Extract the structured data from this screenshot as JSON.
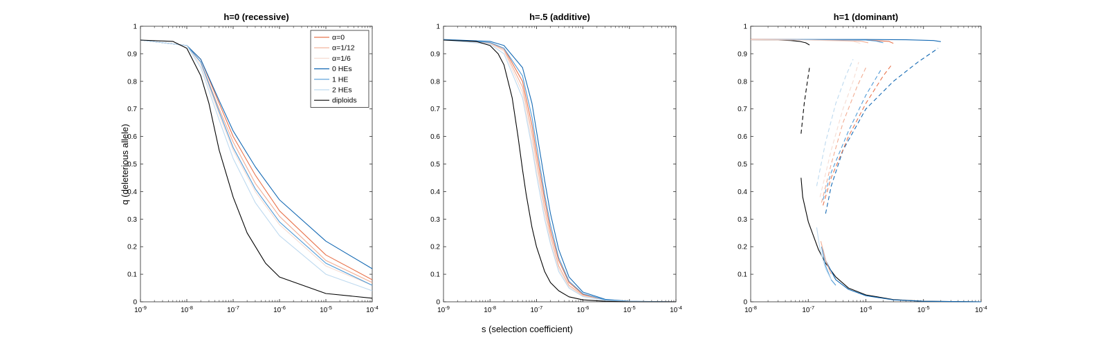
{
  "figure": {
    "xlabel": "s (selection coefficient)",
    "ylabel": "q (deleterious allele)",
    "colors": {
      "alpha_0": "#e8734c",
      "alpha_1_12": "#f2ac92",
      "alpha_1_6": "#f6dcd2",
      "he_0": "#1268b3",
      "he_1": "#4f9ad6",
      "he_2": "#bdd9ef",
      "diploids": "#000000"
    }
  },
  "chart_data": [
    {
      "type": "line",
      "title": "h=0 (recessive)",
      "xscale": "log",
      "xlim": [
        1e-09,
        0.0001
      ],
      "ylim": [
        0,
        1
      ],
      "xticks": [
        -9,
        -8,
        -7,
        -6,
        -5,
        -4
      ],
      "yticks": [
        "0",
        "0.1",
        "0.2",
        "0.3",
        "0.4",
        "0.5",
        "0.6",
        "0.7",
        "0.8",
        "0.9",
        "1"
      ],
      "legend": {
        "location": "top-right",
        "entries": [
          "α=0",
          "α=1/12",
          "α=1/6",
          "0 HEs",
          "1 HE",
          "2 HEs",
          "diploids"
        ]
      },
      "series": [
        {
          "name": "α=0",
          "color": "alpha_0",
          "style": "solid",
          "x": [
            1e-09,
            1e-08,
            2e-08,
            5e-08,
            1e-07,
            3e-07,
            1e-06,
            1e-05,
            0.0001
          ],
          "y": [
            0.95,
            0.93,
            0.88,
            0.72,
            0.6,
            0.46,
            0.33,
            0.17,
            0.08
          ]
        },
        {
          "name": "α=1/12",
          "color": "alpha_1_12",
          "style": "solid",
          "x": [
            1e-09,
            1e-08,
            2e-08,
            5e-08,
            1e-07,
            3e-07,
            1e-06,
            1e-05,
            0.0001
          ],
          "y": [
            0.95,
            0.93,
            0.87,
            0.7,
            0.58,
            0.43,
            0.31,
            0.15,
            0.07
          ]
        },
        {
          "name": "α=1/6",
          "color": "alpha_1_6",
          "style": "solid",
          "x": [
            1e-09,
            1e-08,
            2e-08,
            5e-08,
            1e-07,
            3e-07,
            1e-06,
            1e-05,
            0.0001
          ],
          "y": [
            0.95,
            0.93,
            0.86,
            0.68,
            0.55,
            0.4,
            0.28,
            0.13,
            0.06
          ]
        },
        {
          "name": "0 HEs",
          "color": "he_0",
          "style": "solid",
          "x": [
            1e-09,
            1e-08,
            2e-08,
            5e-08,
            1e-07,
            3e-07,
            1e-06,
            1e-05,
            0.0001
          ],
          "y": [
            0.95,
            0.93,
            0.88,
            0.73,
            0.62,
            0.49,
            0.37,
            0.22,
            0.12
          ]
        },
        {
          "name": "1 HE",
          "color": "he_1",
          "style": "solid",
          "x": [
            1e-09,
            1e-08,
            2e-08,
            5e-08,
            1e-07,
            3e-07,
            1e-06,
            1e-05,
            0.0001
          ],
          "y": [
            0.95,
            0.93,
            0.87,
            0.69,
            0.56,
            0.41,
            0.29,
            0.14,
            0.06
          ]
        },
        {
          "name": "2 HEs",
          "color": "he_2",
          "style": "solid",
          "x": [
            1e-09,
            1e-08,
            2e-08,
            5e-08,
            1e-07,
            3e-07,
            1e-06,
            1e-05,
            0.0001
          ],
          "y": [
            0.95,
            0.93,
            0.85,
            0.66,
            0.52,
            0.36,
            0.24,
            0.1,
            0.04
          ]
        },
        {
          "name": "diploids",
          "color": "diploids",
          "style": "solid",
          "x": [
            1e-09,
            5e-09,
            1e-08,
            2e-08,
            3e-08,
            5e-08,
            1e-07,
            2e-07,
            5e-07,
            1e-06,
            1e-05,
            0.0001
          ],
          "y": [
            0.95,
            0.945,
            0.92,
            0.82,
            0.72,
            0.55,
            0.38,
            0.25,
            0.14,
            0.09,
            0.03,
            0.013
          ]
        }
      ]
    },
    {
      "type": "line",
      "title": "h=.5 (additive)",
      "xscale": "log",
      "xlim": [
        1e-09,
        0.0001
      ],
      "ylim": [
        0,
        1
      ],
      "xticks": [
        -9,
        -8,
        -7,
        -6,
        -5,
        -4
      ],
      "yticks": [
        "0",
        "0.1",
        "0.2",
        "0.3",
        "0.4",
        "0.5",
        "0.6",
        "0.7",
        "0.8",
        "0.9",
        "1"
      ],
      "series": [
        {
          "name": "α=0",
          "color": "alpha_0",
          "style": "solid",
          "x": [
            1e-09,
            1e-08,
            2e-08,
            5e-08,
            8e-08,
            1e-07,
            1.5e-07,
            2e-07,
            3e-07,
            5e-07,
            1e-06,
            3e-06,
            1e-05,
            0.0001
          ],
          "y": [
            0.951,
            0.94,
            0.92,
            0.8,
            0.64,
            0.54,
            0.37,
            0.26,
            0.15,
            0.07,
            0.027,
            0.007,
            0.001,
            0
          ]
        },
        {
          "name": "α=1/12",
          "color": "alpha_1_12",
          "style": "solid",
          "x": [
            1e-09,
            1e-08,
            2e-08,
            5e-08,
            8e-08,
            1e-07,
            1.5e-07,
            2e-07,
            3e-07,
            5e-07,
            1e-06,
            3e-06,
            1e-05,
            0.0001
          ],
          "y": [
            0.951,
            0.939,
            0.915,
            0.78,
            0.61,
            0.51,
            0.34,
            0.24,
            0.13,
            0.06,
            0.024,
            0.006,
            0.001,
            0
          ]
        },
        {
          "name": "α=1/6",
          "color": "alpha_1_6",
          "style": "solid",
          "x": [
            1e-09,
            1e-08,
            2e-08,
            5e-08,
            8e-08,
            1e-07,
            1.5e-07,
            2e-07,
            3e-07,
            5e-07,
            1e-06,
            3e-06,
            1e-05,
            0.0001
          ],
          "y": [
            0.951,
            0.937,
            0.91,
            0.76,
            0.58,
            0.48,
            0.32,
            0.22,
            0.12,
            0.055,
            0.021,
            0.005,
            0.001,
            0
          ]
        },
        {
          "name": "0 HEs",
          "color": "he_0",
          "style": "solid",
          "x": [
            1e-09,
            1e-08,
            2e-08,
            5e-08,
            8e-08,
            1e-07,
            1.5e-07,
            2e-07,
            3e-07,
            5e-07,
            1e-06,
            3e-06,
            1e-05,
            0.0001
          ],
          "y": [
            0.952,
            0.945,
            0.93,
            0.85,
            0.72,
            0.62,
            0.44,
            0.32,
            0.19,
            0.09,
            0.035,
            0.009,
            0.002,
            0
          ]
        },
        {
          "name": "1 HE",
          "color": "he_1",
          "style": "solid",
          "x": [
            1e-09,
            1e-08,
            2e-08,
            5e-08,
            8e-08,
            1e-07,
            1.5e-07,
            2e-07,
            3e-07,
            5e-07,
            1e-06,
            3e-06,
            1e-05,
            0.0001
          ],
          "y": [
            0.951,
            0.941,
            0.92,
            0.82,
            0.67,
            0.57,
            0.39,
            0.28,
            0.16,
            0.075,
            0.029,
            0.007,
            0.001,
            0
          ]
        },
        {
          "name": "2 HEs",
          "color": "he_2",
          "style": "solid",
          "x": [
            1e-09,
            1e-08,
            2e-08,
            5e-08,
            8e-08,
            1e-07,
            1.5e-07,
            2e-07,
            3e-07,
            5e-07,
            1e-06,
            3e-06,
            1e-05,
            0.0001
          ],
          "y": [
            0.95,
            0.935,
            0.9,
            0.74,
            0.56,
            0.46,
            0.3,
            0.21,
            0.11,
            0.05,
            0.019,
            0.005,
            0.001,
            0
          ]
        },
        {
          "name": "diploids",
          "color": "diploids",
          "style": "solid",
          "x": [
            1e-09,
            5e-09,
            1e-08,
            1.5e-08,
            2e-08,
            3e-08,
            4e-08,
            5e-08,
            6e-08,
            8e-08,
            1e-07,
            1.5e-07,
            2e-07,
            3e-07,
            5e-07,
            1e-06,
            3e-06,
            1e-05,
            0.0001
          ],
          "y": [
            0.95,
            0.945,
            0.93,
            0.9,
            0.86,
            0.74,
            0.6,
            0.48,
            0.39,
            0.27,
            0.2,
            0.11,
            0.07,
            0.04,
            0.018,
            0.007,
            0.002,
            0,
            0
          ]
        }
      ]
    },
    {
      "type": "line",
      "title": "h=1 (dominant)",
      "xscale": "log",
      "xlim": [
        1e-08,
        0.0001
      ],
      "ylim": [
        0,
        1
      ],
      "xticks": [
        -8,
        -7,
        -6,
        -5,
        -4
      ],
      "yticks": [
        "0",
        "0.1",
        "0.2",
        "0.3",
        "0.4",
        "0.5",
        "0.6",
        "0.7",
        "0.8",
        "0.9",
        "1"
      ],
      "series": [
        {
          "name": "diploids (stable, upper)",
          "color": "diploids",
          "style": "solid",
          "x": [
            1e-08,
            3e-08,
            5e-08,
            7e-08,
            9e-08,
            1.05e-07
          ],
          "y": [
            0.951,
            0.95,
            0.948,
            0.945,
            0.94,
            0.932
          ]
        },
        {
          "name": "diploids (unstable)",
          "color": "diploids",
          "style": "dashed",
          "x": [
            7.5e-08,
            8.5e-08,
            9.5e-08,
            1.05e-07
          ],
          "y": [
            0.61,
            0.72,
            0.79,
            0.85
          ]
        },
        {
          "name": "diploids (stable, lower)",
          "color": "diploids",
          "style": "solid",
          "x": [
            7.5e-08,
            8e-08,
            1e-07,
            1.5e-07,
            2e-07,
            3e-07,
            5e-07,
            1e-06,
            3e-06,
            1e-05,
            0.0001
          ],
          "y": [
            0.45,
            0.38,
            0.29,
            0.19,
            0.14,
            0.09,
            0.05,
            0.025,
            0.008,
            0.002,
            0
          ]
        },
        {
          "name": "0 HEs (stable, upper)",
          "color": "he_0",
          "style": "solid",
          "x": [
            1e-08,
            1e-07,
            1e-06,
            5e-06,
            1.5e-05,
            2e-05
          ],
          "y": [
            0.952,
            0.952,
            0.952,
            0.951,
            0.948,
            0.944
          ]
        },
        {
          "name": "0 HEs (unstable)",
          "color": "he_0",
          "style": "dashed",
          "x": [
            2e-07,
            2.5e-07,
            4e-07,
            1e-06,
            3e-06,
            8e-06,
            1.8e-05
          ],
          "y": [
            0.32,
            0.42,
            0.55,
            0.7,
            0.8,
            0.87,
            0.92
          ]
        },
        {
          "name": "0 HEs (stable, lower)",
          "color": "he_0",
          "style": "solid",
          "x": [
            1.8e-07,
            2e-07,
            3e-07,
            5e-07,
            1e-06,
            3e-06,
            1e-05,
            0.0001
          ],
          "y": [
            0.19,
            0.15,
            0.08,
            0.045,
            0.022,
            0.007,
            0.002,
            0
          ]
        },
        {
          "name": "α=0 (stable, upper)",
          "color": "alpha_0",
          "style": "solid",
          "x": [
            1e-08,
            1e-07,
            1e-06,
            2.5e-06,
            3e-06
          ],
          "y": [
            0.952,
            0.951,
            0.95,
            0.945,
            0.938
          ]
        },
        {
          "name": "α=0 (unstable)",
          "color": "alpha_0",
          "style": "dashed",
          "x": [
            1.8e-07,
            2.5e-07,
            5e-07,
            1e-06,
            2e-06,
            2.8e-06
          ],
          "y": [
            0.35,
            0.45,
            0.6,
            0.72,
            0.82,
            0.86
          ]
        },
        {
          "name": "1 HE (stable, upper)",
          "color": "he_1",
          "style": "solid",
          "x": [
            1e-08,
            1e-07,
            1e-06,
            1.5e-06,
            2e-06
          ],
          "y": [
            0.951,
            0.951,
            0.95,
            0.946,
            0.94
          ]
        },
        {
          "name": "1 HE (unstable)",
          "color": "he_1",
          "style": "dashed",
          "x": [
            1.8e-07,
            2.5e-07,
            5e-07,
            1e-06,
            1.8e-06
          ],
          "y": [
            0.37,
            0.47,
            0.62,
            0.75,
            0.84
          ]
        },
        {
          "name": "1 HE (stable, lower)",
          "color": "he_1",
          "style": "solid",
          "x": [
            1.7e-07,
            2e-07,
            2.5e-07,
            3e-07
          ],
          "y": [
            0.2,
            0.13,
            0.08,
            0.06
          ]
        },
        {
          "name": "α=1/12 (stable, upper)",
          "color": "alpha_1_12",
          "style": "solid",
          "x": [
            1e-08,
            1e-07,
            8e-07,
            1.1e-06
          ],
          "y": [
            0.951,
            0.95,
            0.946,
            0.94
          ]
        },
        {
          "name": "α=1/12 (unstable)",
          "color": "alpha_1_12",
          "style": "dashed",
          "x": [
            1.7e-07,
            2.5e-07,
            4e-07,
            7e-07,
            1e-06
          ],
          "y": [
            0.36,
            0.5,
            0.65,
            0.78,
            0.85
          ]
        },
        {
          "name": "α=1/12 (stable, lower)",
          "color": "alpha_1_12",
          "style": "solid",
          "x": [
            1.65e-07,
            2e-07,
            2.5e-07
          ],
          "y": [
            0.22,
            0.15,
            0.1
          ]
        },
        {
          "name": "α=1/6 (stable, upper)",
          "color": "alpha_1_6",
          "style": "solid",
          "x": [
            1e-08,
            1e-07,
            6e-07,
            8e-07
          ],
          "y": [
            0.951,
            0.95,
            0.945,
            0.938
          ]
        },
        {
          "name": "α=1/6 (unstable)",
          "color": "alpha_1_6",
          "style": "dashed",
          "x": [
            1.6e-07,
            2.5e-07,
            4e-07,
            6e-07,
            7.5e-07
          ],
          "y": [
            0.38,
            0.55,
            0.7,
            0.8,
            0.87
          ]
        },
        {
          "name": "2 HEs (unstable)",
          "color": "he_2",
          "style": "dashed",
          "x": [
            1.4e-07,
            2e-07,
            3e-07,
            4.5e-07,
            6e-07
          ],
          "y": [
            0.42,
            0.58,
            0.72,
            0.82,
            0.88
          ]
        },
        {
          "name": "2 HEs (stable, lower)",
          "color": "he_2",
          "style": "solid",
          "x": [
            1.4e-07,
            1.6e-07,
            2e-07,
            2.5e-07
          ],
          "y": [
            0.27,
            0.19,
            0.12,
            0.08
          ]
        }
      ]
    }
  ]
}
